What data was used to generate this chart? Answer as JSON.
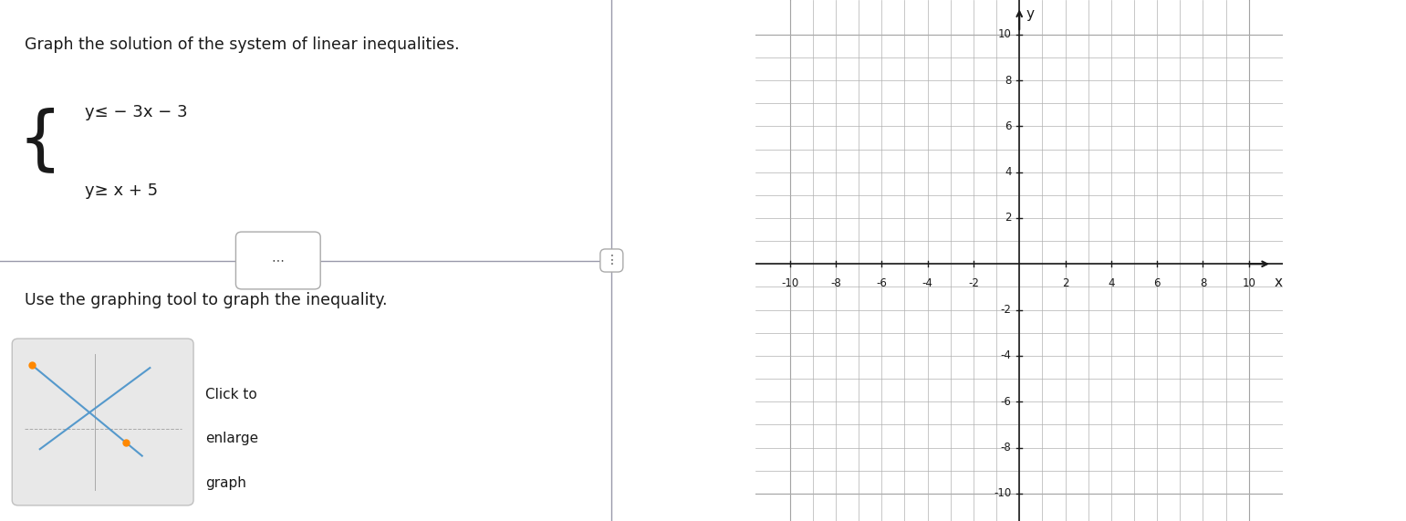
{
  "title_text": "Graph the solution of the system of linear inequalities.",
  "ineq1_line1": "y≤ − 3x − 3",
  "ineq2_line1": "y≥ x + 5",
  "instruction": "Use the graphing tool to graph the inequality.",
  "thumbnail_text": [
    "Click to",
    "enlarge",
    "graph"
  ],
  "axis_min": -10,
  "axis_max": 10,
  "tick_step": 2,
  "grid_minor_color": "#b0b0b0",
  "grid_major_color": "#888888",
  "axis_color": "#1a1a1a",
  "background_color": "#ffffff",
  "text_color": "#1a1a1a",
  "divider_color": "#9999aa",
  "thumb_line1_color": "#5599cc",
  "thumb_line2_color": "#5599cc",
  "thumb_dot_color": "#ff8800",
  "fig_width": 15.41,
  "fig_height": 5.71,
  "dpi": 100
}
